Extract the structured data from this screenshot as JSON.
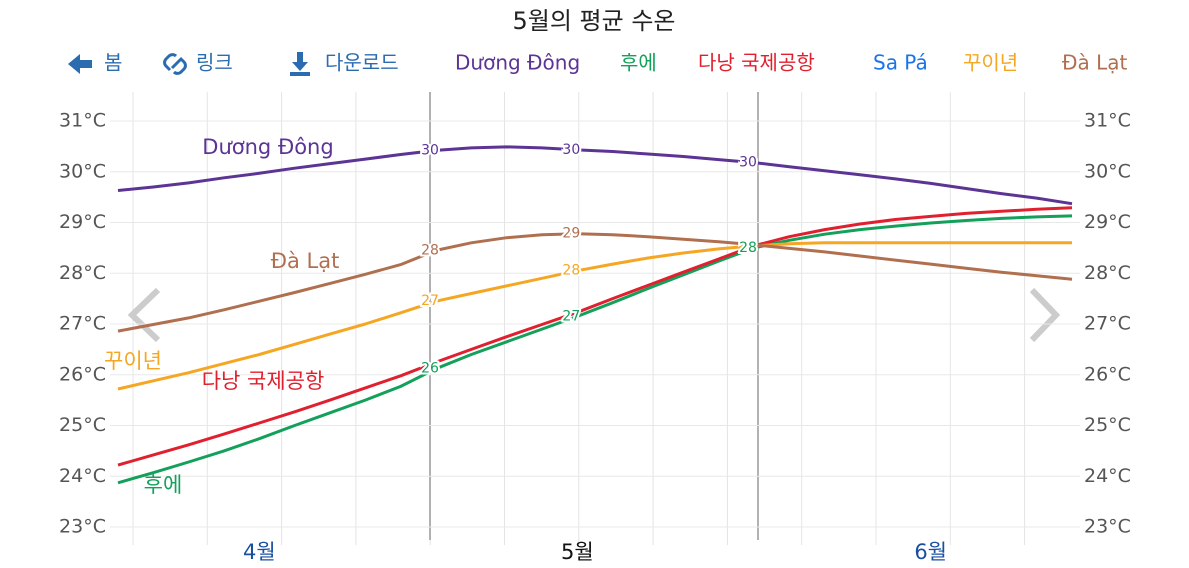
{
  "nav": {
    "back": "봄",
    "link": "링크",
    "download": "다운로드"
  },
  "chart_data": {
    "type": "line",
    "title": "5월의 평균 수온",
    "categories": [
      null,
      null,
      null,
      null,
      "4월",
      null,
      null,
      null,
      null,
      null,
      null,
      null,
      null,
      "5월",
      null,
      null,
      null,
      null,
      null,
      null,
      null,
      null,
      null,
      "6월",
      null,
      null,
      null,
      null
    ],
    "ylim": [
      23,
      31
    ],
    "yticks": [
      {
        "value": 23,
        "label": "23°C"
      },
      {
        "value": 24,
        "label": "24°C"
      },
      {
        "value": 25,
        "label": "25°C"
      },
      {
        "value": 26,
        "label": "26°C"
      },
      {
        "value": 27,
        "label": "27°C"
      },
      {
        "value": 28,
        "label": "28°C"
      },
      {
        "value": 29,
        "label": "29°C"
      },
      {
        "value": 30,
        "label": "30°C"
      },
      {
        "value": 31,
        "label": "31°C"
      }
    ],
    "grid": true,
    "series": [
      {
        "name": "Dương Đông",
        "color": "#5c3494",
        "values": [
          29.63,
          29.7,
          29.78,
          29.88,
          29.97,
          30.07,
          30.16,
          30.25,
          30.34,
          30.42,
          30.47,
          30.49,
          30.47,
          30.43,
          30.4,
          30.35,
          30.3,
          30.24,
          30.18,
          30.1,
          30.02,
          29.94,
          29.86,
          29.77,
          29.67,
          29.57,
          29.48,
          29.37
        ],
        "value_labels": [
          null,
          null,
          null,
          null,
          null,
          null,
          null,
          null,
          null,
          "30",
          null,
          null,
          null,
          "30",
          null,
          null,
          null,
          null,
          "30",
          null,
          null,
          null,
          null,
          null,
          null,
          null,
          null,
          null
        ]
      },
      {
        "name": "후에",
        "color": "#13a05a",
        "values": [
          23.87,
          24.07,
          24.28,
          24.5,
          24.74,
          25.0,
          25.25,
          25.5,
          25.77,
          26.12,
          26.4,
          26.65,
          26.9,
          27.15,
          27.42,
          27.7,
          27.97,
          28.24,
          28.5,
          28.65,
          28.77,
          28.86,
          28.93,
          28.99,
          29.04,
          29.08,
          29.11,
          29.13
        ],
        "value_labels": [
          null,
          null,
          null,
          null,
          null,
          null,
          null,
          null,
          null,
          "26",
          null,
          null,
          null,
          "27",
          null,
          null,
          null,
          null,
          "28",
          null,
          null,
          null,
          null,
          null,
          null,
          null,
          null,
          null
        ]
      },
      {
        "name": "다낭 국제공항",
        "color": "#e0202e",
        "values": [
          24.22,
          24.42,
          24.62,
          24.83,
          25.05,
          25.27,
          25.5,
          25.74,
          25.98,
          26.25,
          26.5,
          26.75,
          26.99,
          27.23,
          27.5,
          27.76,
          28.02,
          28.28,
          28.54,
          28.72,
          28.86,
          28.97,
          29.06,
          29.12,
          29.18,
          29.22,
          29.26,
          29.29
        ]
      },
      {
        "name": "Sa Pá",
        "color": "#1a73e8",
        "values": [
          null,
          null,
          null,
          null,
          null,
          null,
          null,
          null,
          null,
          null,
          null,
          null,
          null,
          null,
          null,
          null,
          null,
          null,
          null,
          null,
          null,
          null,
          null,
          null,
          null,
          null,
          null,
          null
        ]
      },
      {
        "name": "꾸이년",
        "color": "#f5a623",
        "values": [
          25.72,
          25.88,
          26.04,
          26.22,
          26.4,
          26.6,
          26.8,
          27.0,
          27.22,
          27.45,
          27.6,
          27.75,
          27.9,
          28.05,
          28.18,
          28.3,
          28.4,
          28.48,
          28.54,
          28.58,
          28.6,
          28.6,
          28.6,
          28.6,
          28.6,
          28.6,
          28.6,
          28.6
        ],
        "value_labels": [
          null,
          null,
          null,
          null,
          null,
          null,
          null,
          null,
          null,
          "27",
          null,
          null,
          null,
          "28",
          null,
          null,
          null,
          null,
          null,
          null,
          null,
          null,
          null,
          null,
          null,
          null,
          null,
          null
        ]
      },
      {
        "name": "Đà Lạt",
        "color": "#b07050",
        "values": [
          26.86,
          26.99,
          27.12,
          27.28,
          27.45,
          27.62,
          27.8,
          27.98,
          28.17,
          28.45,
          28.6,
          28.7,
          28.76,
          28.78,
          28.76,
          28.72,
          28.67,
          28.62,
          28.56,
          28.49,
          28.42,
          28.34,
          28.26,
          28.18,
          28.1,
          28.02,
          27.95,
          27.88
        ],
        "value_labels": [
          null,
          null,
          null,
          null,
          null,
          null,
          null,
          null,
          null,
          "28",
          null,
          null,
          null,
          "29",
          null,
          null,
          null,
          null,
          null,
          null,
          null,
          null,
          null,
          null,
          null,
          null,
          null,
          null
        ]
      }
    ]
  }
}
